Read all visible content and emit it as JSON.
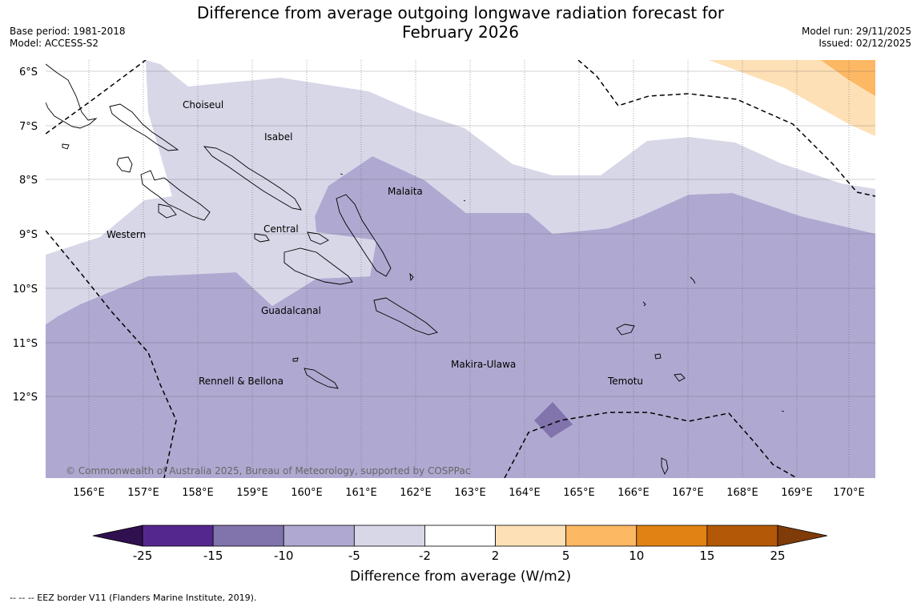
{
  "title_line1": "Difference from average outgoing longwave radiation forecast for",
  "title_line2": "February 2026",
  "base_period": "Base period: 1981-2018",
  "model": "Model: ACCESS-S2",
  "model_run": "Model run: 29/11/2025",
  "issued": "Issued: 02/12/2025",
  "copyright": "© Commonwealth of Australia 2025, Bureau of Meteorology, supported by COSPPac",
  "lat_labels": [
    "6°S",
    "7°S",
    "8°S",
    "9°S",
    "10°S",
    "11°S",
    "12°S"
  ],
  "lon_labels": [
    "156°E",
    "157°E",
    "158°E",
    "159°E",
    "160°E",
    "161°E",
    "162°E",
    "163°E",
    "164°E",
    "165°E",
    "166°E",
    "167°E",
    "168°E",
    "169°E",
    "170°E"
  ],
  "regions": {
    "choiseul": "Choiseul",
    "isabel": "Isabel",
    "malaita": "Malaita",
    "western": "Western",
    "central": "Central",
    "guadalcanal": "Guadalcanal",
    "makira": "Makira-Ulawa",
    "temotu": "Temotu",
    "rennell": "Rennell & Bellona"
  },
  "colorbar": {
    "ticks": [
      "-25",
      "-15",
      "-10",
      "-5",
      "-2",
      "2",
      "5",
      "10",
      "15",
      "25"
    ],
    "colors": [
      "#30104f",
      "#54278f",
      "#8173ab",
      "#afa9d1",
      "#d7d7e8",
      "#ffffff",
      "#fee0b6",
      "#fdb863",
      "#e08214",
      "#b35806",
      "#7f3b08"
    ],
    "title": "Difference from average (W/m2)"
  },
  "footnote": "--  --  -- EEZ border V11 (Flanders Marine Institute, 2019)."
}
